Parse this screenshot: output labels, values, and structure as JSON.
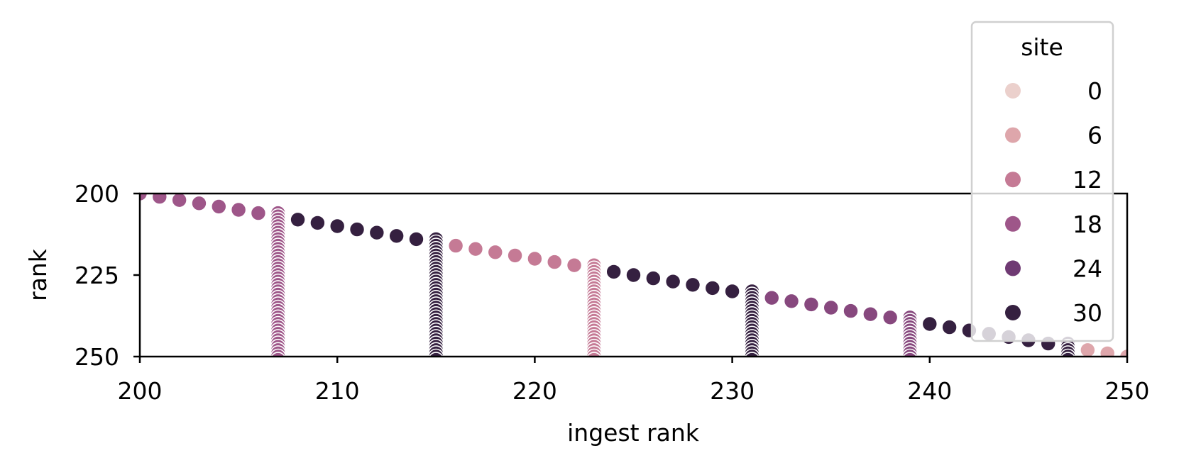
{
  "chart_data": {
    "type": "scatter",
    "title": "",
    "xlabel": "ingest rank",
    "ylabel": "rank",
    "xlim": [
      200,
      250
    ],
    "ylim": [
      250,
      200
    ],
    "y_inverted": true,
    "grid": false,
    "xticks": [
      200,
      210,
      220,
      230,
      240,
      250
    ],
    "yticks": [
      200,
      225,
      250
    ],
    "hue": {
      "name": "site",
      "range": [
        0,
        32
      ],
      "palette": [
        "#ebd0cc",
        "#2b1a3b"
      ]
    },
    "legend": {
      "title": "site",
      "placement": "top-right",
      "entries": [
        {
          "label": "0",
          "value": 0,
          "color": "#ebd0cc"
        },
        {
          "label": "6",
          "value": 6,
          "color": "#dea6ab"
        },
        {
          "label": "12",
          "value": 12,
          "color": "#c57a95"
        },
        {
          "label": "18",
          "value": 18,
          "color": "#9e5689"
        },
        {
          "label": "24",
          "value": 24,
          "color": "#6f3a73"
        },
        {
          "label": "30",
          "value": 30,
          "color": "#352040"
        }
      ]
    },
    "point_groups": [
      {
        "x_start": 200,
        "x_end": 206,
        "y_start": 200,
        "y_step": 1,
        "site": 18
      },
      {
        "x_start": 207,
        "x_end": 207,
        "y_start": 206,
        "y_end": 251,
        "y_step": 1,
        "site": 18
      },
      {
        "x_start": 208,
        "x_end": 214,
        "y_start": 208,
        "y_step": 1,
        "site": 30
      },
      {
        "x_start": 215,
        "x_end": 215,
        "y_start": 214,
        "y_end": 251,
        "y_step": 1,
        "site": 30
      },
      {
        "x_start": 216,
        "x_end": 222,
        "y_start": 216,
        "y_step": 1,
        "site": 12
      },
      {
        "x_start": 223,
        "x_end": 223,
        "y_start": 222,
        "y_end": 251,
        "y_step": 1,
        "site": 12
      },
      {
        "x_start": 224,
        "x_end": 230,
        "y_start": 224,
        "y_step": 1,
        "site": 30
      },
      {
        "x_start": 231,
        "x_end": 231,
        "y_start": 230,
        "y_end": 251,
        "y_step": 1,
        "site": 30
      },
      {
        "x_start": 232,
        "x_end": 238,
        "y_start": 232,
        "y_step": 1,
        "site": 21
      },
      {
        "x_start": 239,
        "x_end": 239,
        "y_start": 238,
        "y_end": 251,
        "y_step": 1,
        "site": 21
      },
      {
        "x_start": 240,
        "x_end": 246,
        "y_start": 240,
        "y_step": 1,
        "site": 30
      },
      {
        "x_start": 247,
        "x_end": 247,
        "y_start": 246,
        "y_end": 251,
        "y_step": 1,
        "site": 30
      },
      {
        "x_start": 248,
        "x_end": 250,
        "y_start": 248,
        "y_step": 1,
        "site": 6
      }
    ]
  }
}
